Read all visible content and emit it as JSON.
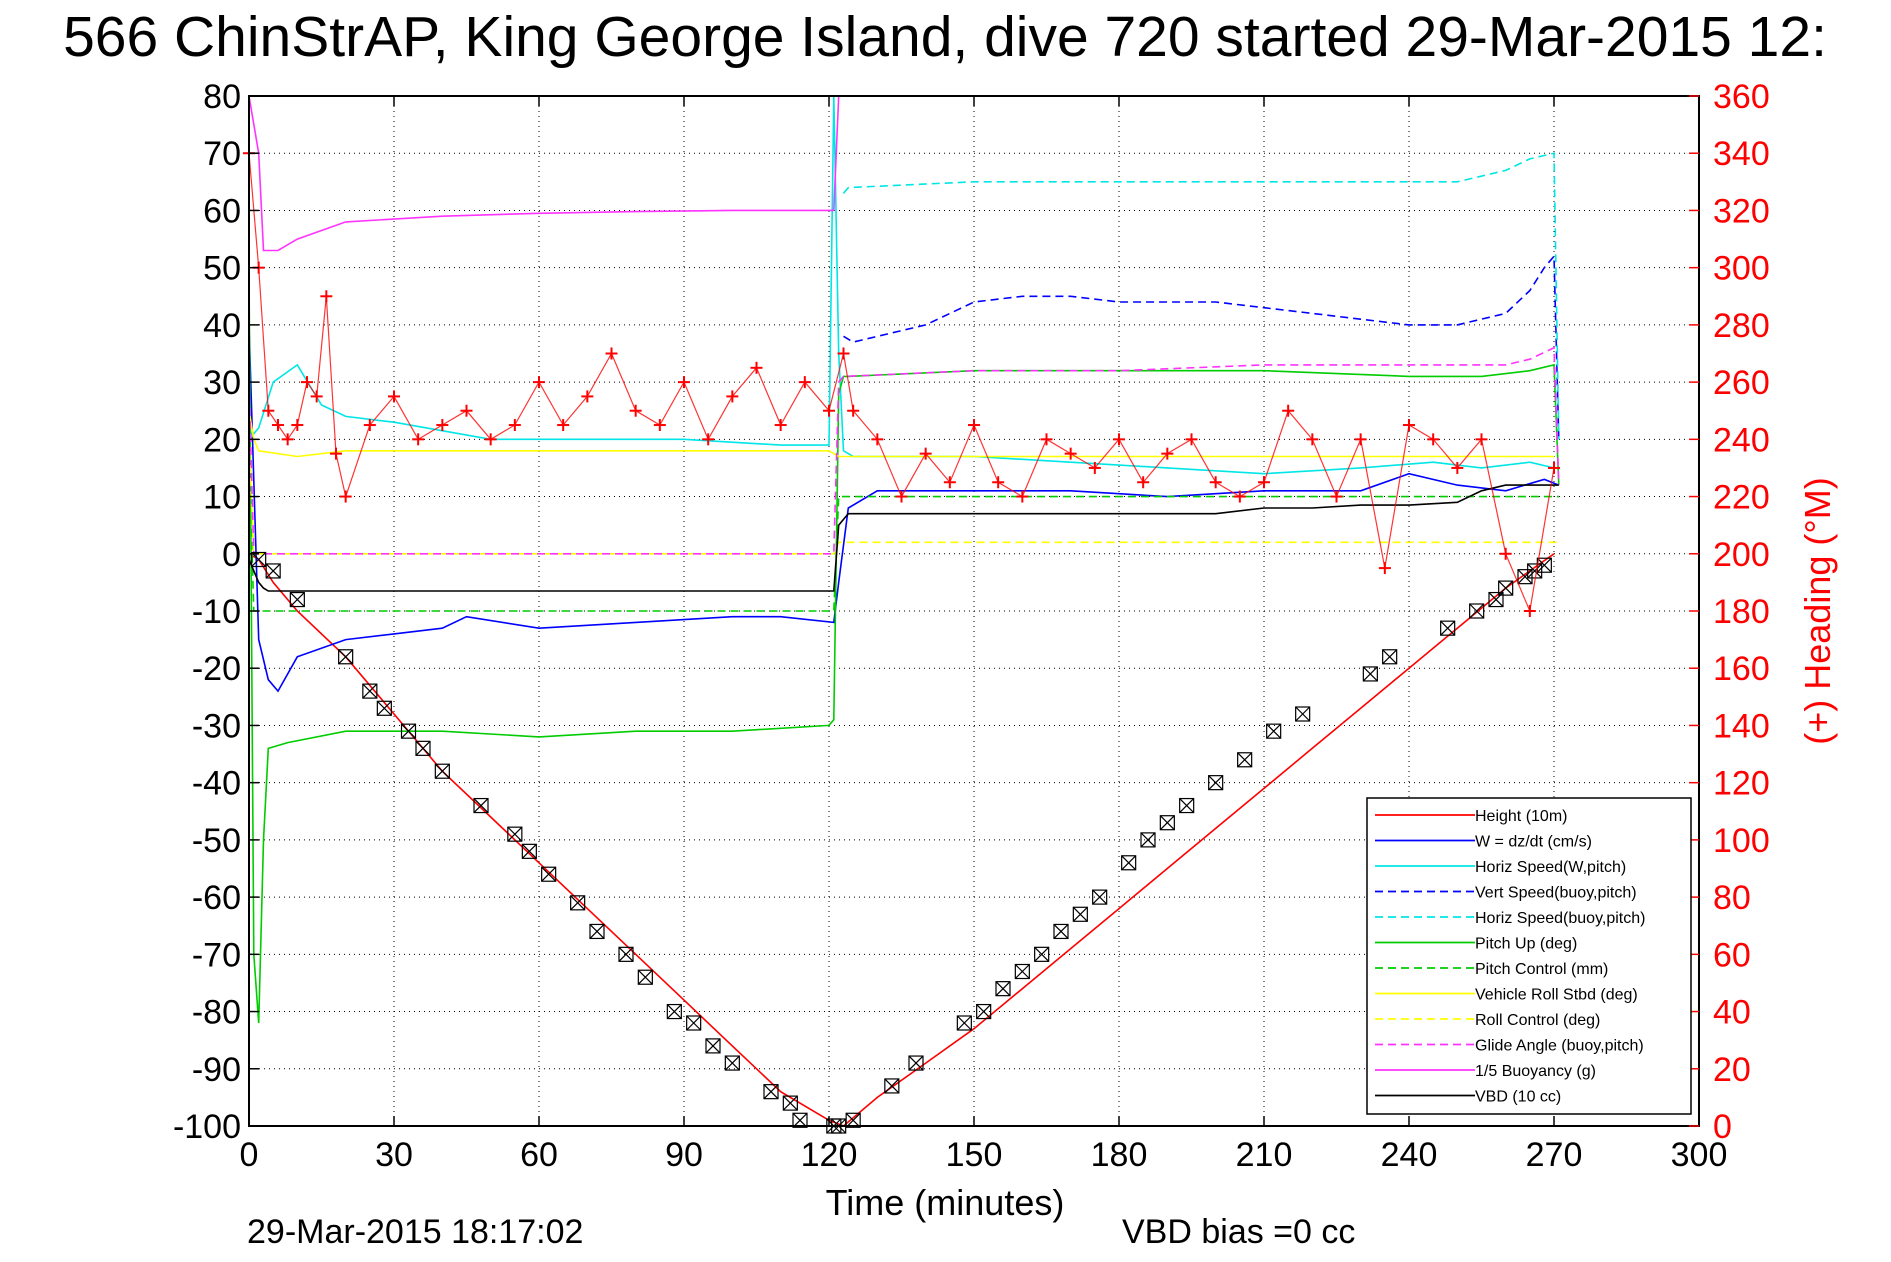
{
  "chart_data": {
    "type": "line",
    "title": "566 ChinStrAP, King George Island, dive 720 started 29-Mar-2015 12:",
    "xlabel": "Time (minutes)",
    "ylabel_right": "(+) Heading (°M)",
    "xlim": [
      0,
      300
    ],
    "ylim_left": [
      -100,
      80
    ],
    "ylim_right": [
      0,
      360
    ],
    "x_ticks": [
      "0",
      "30",
      "60",
      "90",
      "120",
      "150",
      "180",
      "210",
      "240",
      "270",
      "300"
    ],
    "y_ticks_left": [
      "80",
      "70",
      "60",
      "50",
      "40",
      "30",
      "20",
      "10",
      "0",
      "-10",
      "-20",
      "-30",
      "-40",
      "-50",
      "-60",
      "-70",
      "-80",
      "-90",
      "-100"
    ],
    "y_ticks_right": [
      "360",
      "340",
      "320",
      "300",
      "280",
      "260",
      "240",
      "220",
      "200",
      "180",
      "160",
      "140",
      "120",
      "100",
      "80",
      "60",
      "40",
      "20",
      "0"
    ],
    "grid": true,
    "legend_position": "bottom-right",
    "series": [
      {
        "name": "Height (10m)",
        "color": "#ff0000",
        "dash": "solid",
        "x": [
          0,
          2,
          5,
          10,
          20,
          30,
          40,
          50,
          60,
          70,
          80,
          90,
          100,
          110,
          120,
          123,
          130,
          140,
          150,
          160,
          170,
          180,
          190,
          200,
          210,
          220,
          230,
          240,
          250,
          260,
          265,
          270
        ],
        "y": [
          0,
          -1,
          -5,
          -10,
          -18,
          -28,
          -38,
          -46,
          -54,
          -62,
          -70,
          -78,
          -86,
          -94,
          -99,
          -100,
          -95,
          -89,
          -83,
          -76,
          -69,
          -62,
          -55,
          -48,
          -41,
          -34,
          -27,
          -20,
          -13,
          -6,
          -3,
          0
        ]
      },
      {
        "name": "W = dz/dt (cm/s)",
        "color": "#0000ff",
        "dash": "solid",
        "x": [
          0,
          2,
          4,
          6,
          10,
          20,
          30,
          40,
          45,
          60,
          80,
          100,
          110,
          121,
          122,
          124,
          130,
          150,
          170,
          190,
          210,
          230,
          240,
          250,
          260,
          268,
          271
        ],
        "y": [
          40,
          -15,
          -22,
          -24,
          -18,
          -15,
          -14,
          -13,
          -11,
          -13,
          -12,
          -11,
          -11,
          -12,
          -5,
          8,
          11,
          11,
          11,
          10,
          11,
          11,
          14,
          12,
          11,
          13,
          12
        ]
      },
      {
        "name": "Horiz Speed(W,pitch)",
        "color": "#00e6e6",
        "dash": "solid",
        "x": [
          0,
          2,
          5,
          10,
          15,
          20,
          30,
          50,
          70,
          90,
          110,
          120,
          121,
          122,
          123,
          125,
          150,
          170,
          190,
          210,
          230,
          245,
          255,
          265,
          270
        ],
        "y": [
          20,
          22,
          30,
          33,
          26,
          24,
          23,
          20,
          20,
          20,
          19,
          19,
          80,
          35,
          18,
          17,
          17,
          16,
          15,
          14,
          15,
          16,
          15,
          16,
          15
        ]
      },
      {
        "name": "Vert Speed(buoy,pitch)",
        "color": "#0000ff",
        "dash": "dashed",
        "x": [
          123,
          125,
          140,
          150,
          160,
          170,
          180,
          190,
          200,
          210,
          220,
          230,
          240,
          250,
          260,
          265,
          268,
          270,
          271
        ],
        "y": [
          38,
          37,
          40,
          44,
          45,
          45,
          44,
          44,
          44,
          43,
          42,
          41,
          40,
          40,
          42,
          46,
          50,
          52,
          20
        ]
      },
      {
        "name": "Horiz Speed(buoy,pitch)",
        "color": "#00e6e6",
        "dash": "dashed",
        "x": [
          123,
          124,
          150,
          180,
          210,
          240,
          250,
          260,
          265,
          270,
          271
        ],
        "y": [
          63,
          64,
          65,
          65,
          65,
          65,
          65,
          67,
          69,
          70,
          20
        ]
      },
      {
        "name": "Pitch Up (deg)",
        "color": "#00cc00",
        "dash": "solid",
        "x": [
          0,
          1,
          2,
          3,
          4,
          8,
          20,
          40,
          60,
          80,
          100,
          120,
          121,
          122,
          123,
          124,
          150,
          180,
          210,
          240,
          255,
          265,
          270,
          271
        ],
        "y": [
          50,
          -70,
          -82,
          -50,
          -34,
          -33,
          -31,
          -31,
          -32,
          -31,
          -31,
          -30,
          -29,
          28,
          31,
          31,
          32,
          32,
          32,
          31,
          31,
          32,
          33,
          12
        ]
      },
      {
        "name": "Pitch Control (mm)",
        "color": "#00cc00",
        "dash": "dashed",
        "x": [
          0,
          1,
          2,
          120,
          121,
          122,
          200,
          271
        ],
        "y": [
          18,
          -10,
          -10,
          -10,
          -10,
          10,
          10,
          10
        ]
      },
      {
        "name": "Vehicle Roll Stbd (deg)",
        "color": "#ffff00",
        "dash": "solid",
        "x": [
          0,
          1,
          2,
          10,
          20,
          30,
          60,
          90,
          120,
          122,
          125,
          150,
          180,
          210,
          240,
          260,
          270
        ],
        "y": [
          25,
          20,
          18,
          17,
          18,
          18,
          18,
          18,
          18,
          17,
          17,
          17,
          17,
          17,
          17,
          17,
          17
        ]
      },
      {
        "name": "Roll Control (deg)",
        "color": "#ffff00",
        "dash": "dashed",
        "x": [
          0,
          1,
          120,
          121,
          122,
          125,
          271
        ],
        "y": [
          20,
          0,
          0,
          0,
          2,
          2,
          2
        ]
      },
      {
        "name": "Glide Angle (buoy,pitch)",
        "color": "#ff33ff",
        "dash": "dashed",
        "x": [
          0,
          1,
          120,
          121,
          122,
          123,
          150,
          180,
          210,
          240,
          260,
          265,
          270,
          271
        ],
        "y": [
          30,
          0,
          0,
          0,
          30,
          31,
          32,
          32,
          33,
          33,
          33,
          34,
          36,
          12
        ]
      },
      {
        "name": "1/5 Buoyancy (g)",
        "color": "#ff33ff",
        "dash": "solid",
        "x": [
          0,
          2,
          3,
          6,
          10,
          20,
          40,
          60,
          80,
          100,
          120,
          121,
          122
        ],
        "y": [
          80,
          70,
          53,
          53,
          55,
          58,
          59,
          59.5,
          59.8,
          60,
          60,
          60,
          80
        ]
      },
      {
        "name": "VBD (10 cc)",
        "color": "#000000",
        "dash": "solid",
        "x": [
          0,
          1,
          2,
          3,
          4,
          10,
          60,
          120,
          121,
          122,
          123,
          124,
          200,
          210,
          220,
          230,
          240,
          250,
          255,
          260,
          270,
          271
        ],
        "y": [
          -1,
          -3,
          -5,
          -6,
          -6.5,
          -6.5,
          -6.5,
          -6.5,
          -6.5,
          5,
          6,
          7,
          7,
          8,
          8,
          8.5,
          8.5,
          9,
          11,
          12,
          12,
          12
        ]
      }
    ],
    "heading_series": {
      "color": "#ff0000",
      "marker": "+",
      "axis": "right",
      "x": [
        0,
        2,
        4,
        6,
        8,
        10,
        12,
        14,
        16,
        18,
        20,
        25,
        30,
        35,
        40,
        45,
        50,
        55,
        60,
        65,
        70,
        75,
        80,
        85,
        90,
        95,
        100,
        105,
        110,
        115,
        120,
        123,
        125,
        130,
        135,
        140,
        145,
        150,
        155,
        160,
        165,
        170,
        175,
        180,
        185,
        190,
        195,
        200,
        205,
        210,
        215,
        220,
        225,
        230,
        235,
        240,
        245,
        250,
        255,
        260,
        265,
        270
      ],
      "y": [
        340,
        300,
        250,
        245,
        240,
        245,
        260,
        255,
        290,
        235,
        220,
        245,
        255,
        240,
        245,
        250,
        240,
        245,
        260,
        245,
        255,
        270,
        250,
        245,
        260,
        240,
        255,
        265,
        245,
        260,
        250,
        270,
        250,
        240,
        220,
        235,
        225,
        245,
        225,
        220,
        240,
        235,
        230,
        240,
        225,
        235,
        240,
        225,
        220,
        225,
        250,
        240,
        220,
        240,
        195,
        245,
        240,
        230,
        240,
        200,
        180,
        230
      ]
    },
    "markers": {
      "symbol": "box-x",
      "color": "#000000",
      "x": [
        2,
        5,
        10,
        20,
        25,
        28,
        33,
        36,
        40,
        48,
        55,
        58,
        62,
        68,
        72,
        78,
        82,
        88,
        92,
        96,
        100,
        108,
        112,
        114,
        121,
        122,
        125,
        133,
        138,
        148,
        152,
        156,
        160,
        164,
        168,
        172,
        176,
        182,
        186,
        190,
        194,
        200,
        206,
        212,
        218,
        232,
        236,
        248,
        254,
        258,
        260,
        264,
        266,
        268
      ],
      "y": [
        -1,
        -3,
        -8,
        -18,
        -24,
        -27,
        -31,
        -34,
        -38,
        -44,
        -49,
        -52,
        -56,
        -61,
        -66,
        -70,
        -74,
        -80,
        -82,
        -86,
        -89,
        -94,
        -96,
        -99,
        -100,
        -100,
        -99,
        -93,
        -89,
        -82,
        -80,
        -76,
        -73,
        -70,
        -66,
        -63,
        -60,
        -54,
        -50,
        -47,
        -44,
        -40,
        -36,
        -31,
        -28,
        -21,
        -18,
        -13,
        -10,
        -8,
        -6,
        -4,
        -3,
        -2
      ]
    },
    "legend": [
      {
        "label": "Height (10m)",
        "color": "#ff0000",
        "dash": "solid"
      },
      {
        "label": "W = dz/dt (cm/s)",
        "color": "#0000ff",
        "dash": "solid"
      },
      {
        "label": "Horiz Speed(W,pitch)",
        "color": "#00e6e6",
        "dash": "solid"
      },
      {
        "label": "Vert Speed(buoy,pitch)",
        "color": "#0000ff",
        "dash": "dashed"
      },
      {
        "label": "Horiz Speed(buoy,pitch)",
        "color": "#00e6e6",
        "dash": "dashed"
      },
      {
        "label": "Pitch Up (deg)",
        "color": "#00cc00",
        "dash": "solid"
      },
      {
        "label": "Pitch Control (mm)",
        "color": "#00cc00",
        "dash": "dashed"
      },
      {
        "label": "Vehicle Roll Stbd (deg)",
        "color": "#ffff00",
        "dash": "solid"
      },
      {
        "label": "Roll Control (deg)",
        "color": "#ffff00",
        "dash": "dashed"
      },
      {
        "label": "Glide Angle (buoy,pitch)",
        "color": "#ff33ff",
        "dash": "dashed"
      },
      {
        "label": "1/5 Buoyancy (g)",
        "color": "#ff33ff",
        "dash": "solid"
      },
      {
        "label": "VBD (10 cc)",
        "color": "#000000",
        "dash": "solid"
      }
    ]
  },
  "footer": {
    "timestamp": "29-Mar-2015 18:17:02",
    "vbd_bias": "VBD bias =0 cc"
  }
}
